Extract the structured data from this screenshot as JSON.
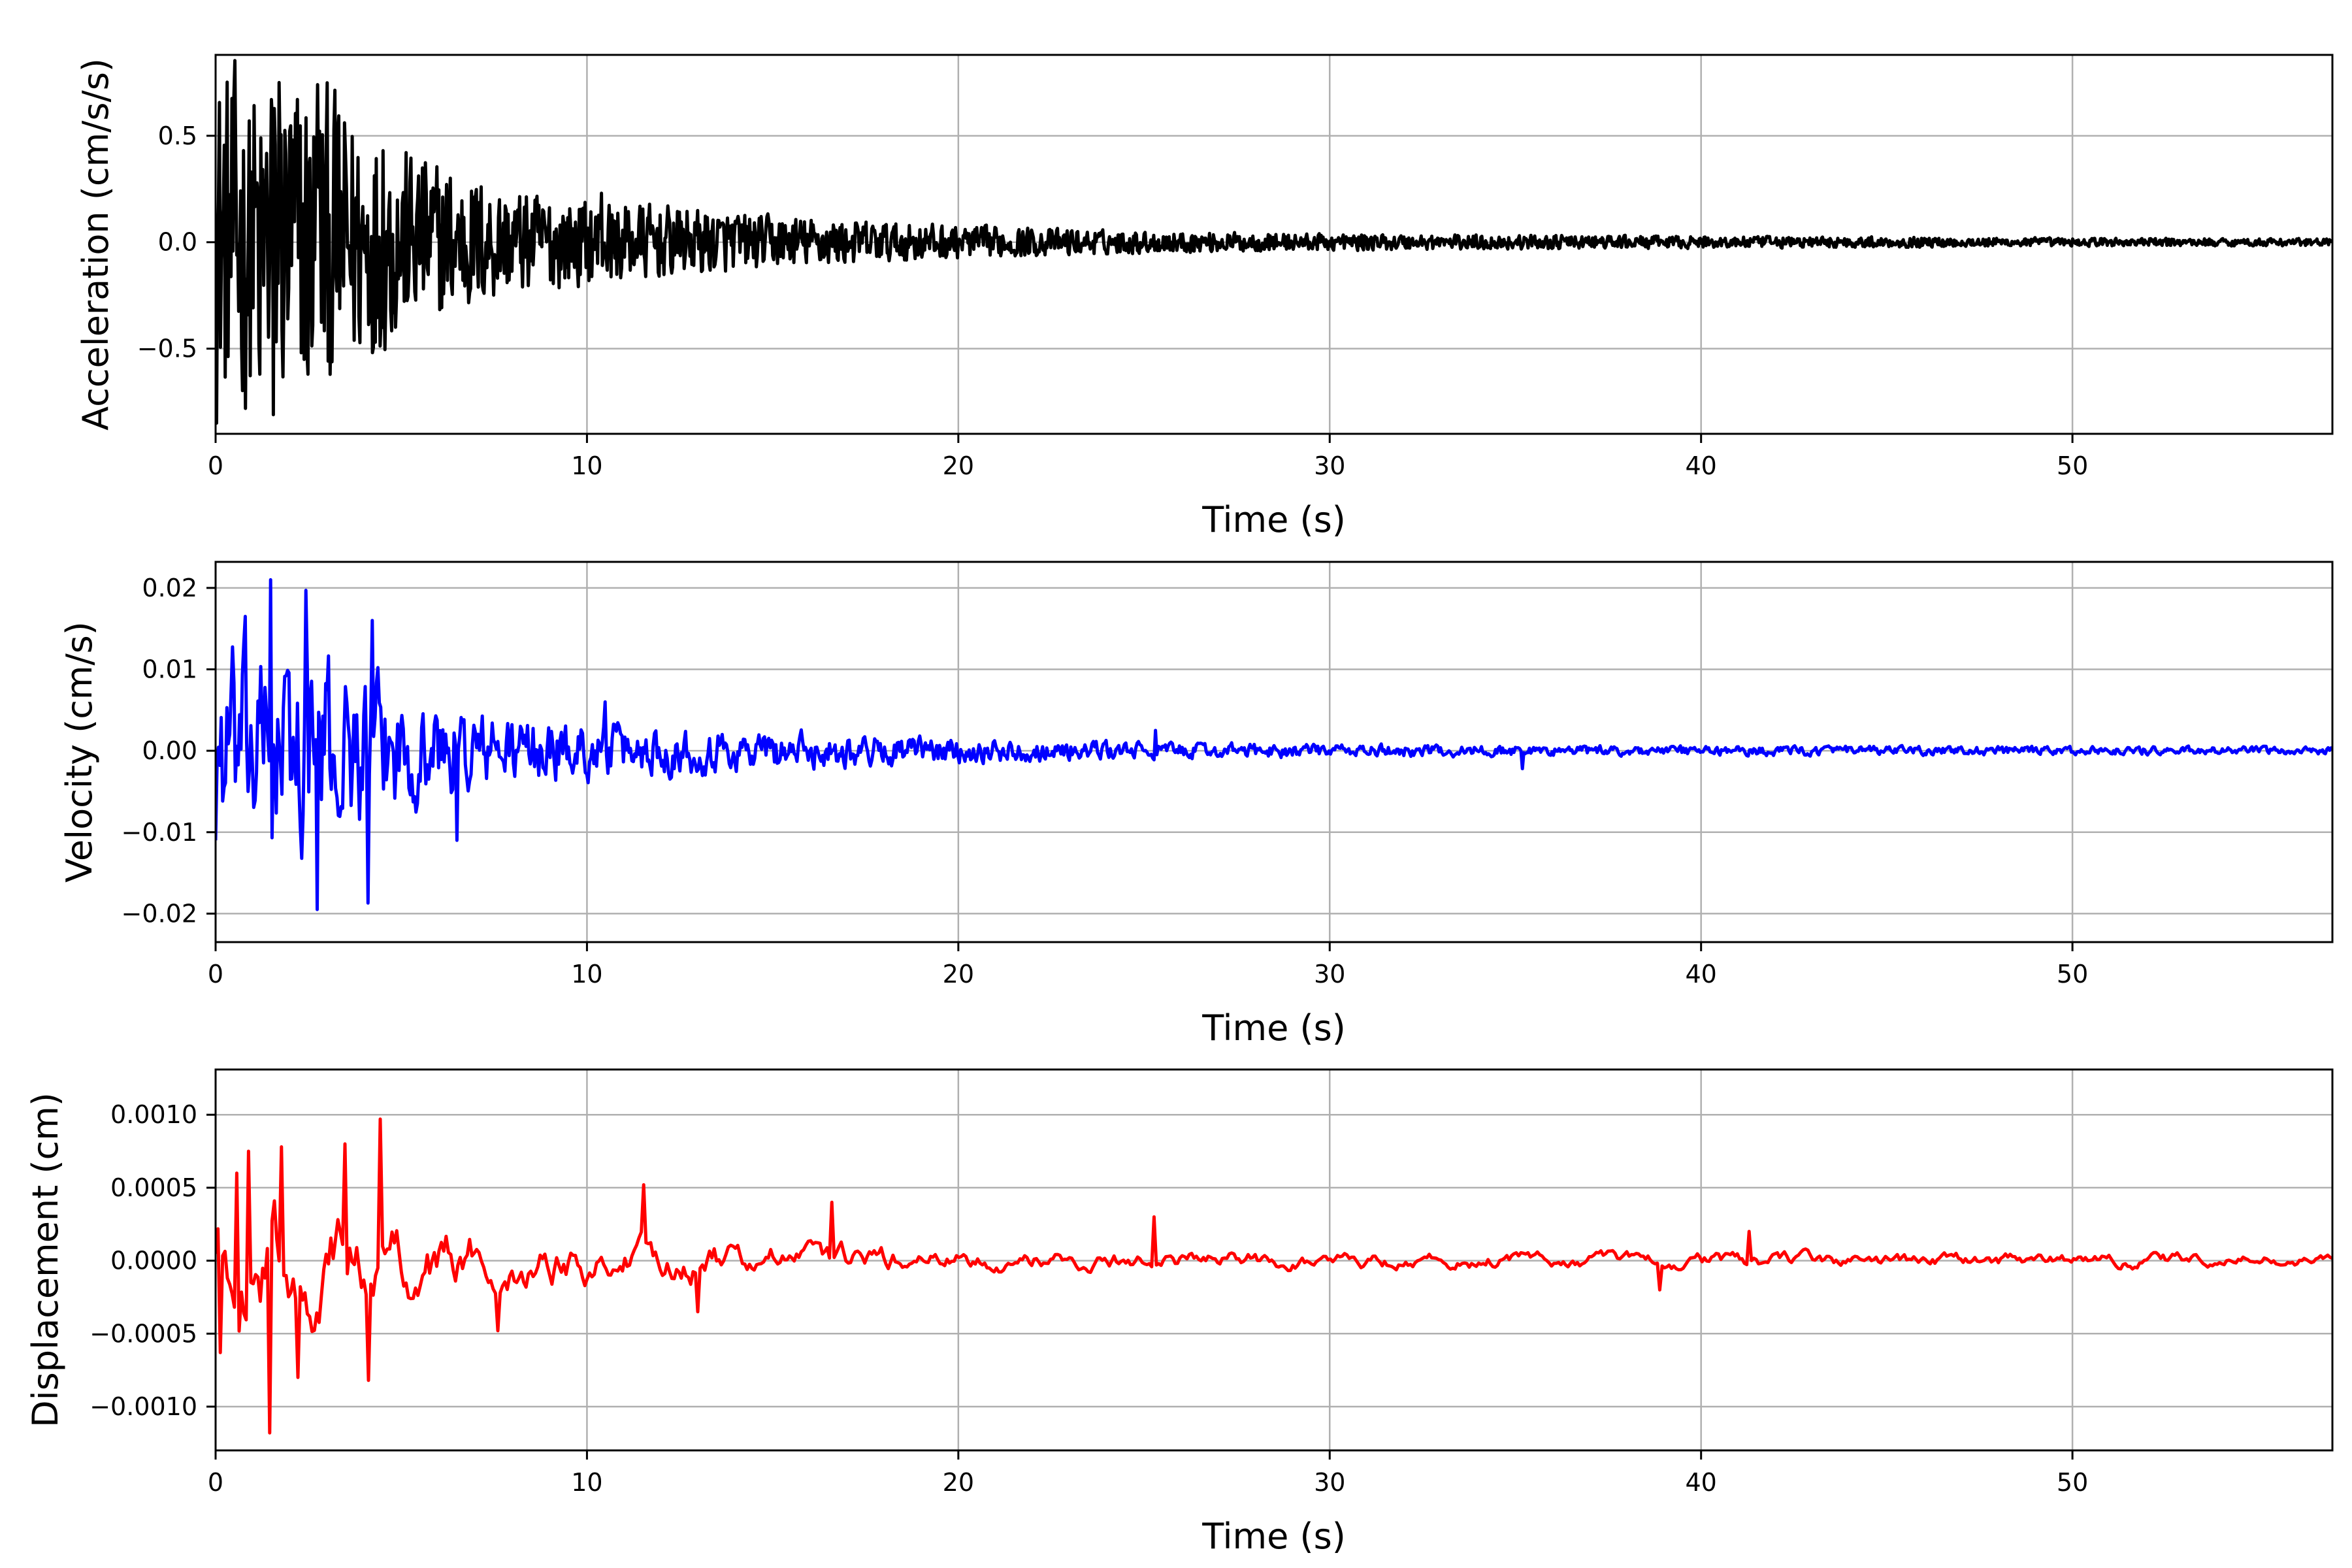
{
  "chart_data": [
    {
      "type": "line",
      "xlabel": "Time (s)",
      "ylabel": "Acceleration (cm/s/s)",
      "xlim": [
        0,
        57
      ],
      "ylim": [
        -0.9,
        0.88
      ],
      "xticks": [
        0,
        10,
        20,
        30,
        40,
        50
      ],
      "xtick_labels": [
        "0",
        "10",
        "20",
        "30",
        "40",
        "50"
      ],
      "yticks": [
        -0.5,
        0.0,
        0.5
      ],
      "ytick_labels": [
        "−0.5",
        "0.0",
        "0.5"
      ],
      "grid": true,
      "series": [
        {
          "color": "#000000",
          "envelope": [
            [
              0,
              0.72
            ],
            [
              2.5,
              0.7
            ],
            [
              5,
              0.4
            ],
            [
              8,
              0.22
            ],
            [
              10,
              0.18
            ],
            [
              15,
              0.11
            ],
            [
              20,
              0.07
            ],
            [
              25,
              0.045
            ],
            [
              30,
              0.035
            ],
            [
              40,
              0.025
            ],
            [
              50,
              0.018
            ],
            [
              57,
              0.015
            ]
          ],
          "peaks": [
            [
              0.0,
              -0.67
            ],
            [
              0.9,
              0.57
            ],
            [
              1.2,
              -0.62
            ],
            [
              1.5,
              0.67
            ],
            [
              1.55,
              -0.81
            ],
            [
              1.7,
              0.75
            ],
            [
              2.5,
              -0.62
            ],
            [
              2.75,
              0.74
            ],
            [
              4.3,
              -0.47
            ],
            [
              4.5,
              0.43
            ],
            [
              10.4,
              0.23
            ]
          ]
        }
      ]
    },
    {
      "type": "line",
      "xlabel": "Time (s)",
      "ylabel": "Velocity (cm/s)",
      "xlim": [
        0,
        57
      ],
      "ylim": [
        -0.0235,
        0.0232
      ],
      "xticks": [
        0,
        10,
        20,
        30,
        40,
        50
      ],
      "xtick_labels": [
        "0",
        "10",
        "20",
        "30",
        "40",
        "50"
      ],
      "yticks": [
        -0.02,
        -0.01,
        0.0,
        0.01,
        0.02
      ],
      "ytick_labels": [
        "−0.02",
        "−0.01",
        "0.00",
        "0.01",
        "0.02"
      ],
      "grid": true,
      "series": [
        {
          "color": "#0000ff",
          "envelope": [
            [
              0,
              0.014
            ],
            [
              2.5,
              0.014
            ],
            [
              5,
              0.008
            ],
            [
              8,
              0.005
            ],
            [
              10,
              0.004
            ],
            [
              15,
              0.0028
            ],
            [
              20,
              0.0018
            ],
            [
              25,
              0.0012
            ],
            [
              30,
              0.0009
            ],
            [
              40,
              0.0007
            ],
            [
              50,
              0.0006
            ],
            [
              57,
              0.0005
            ]
          ],
          "peaks": [
            [
              0.0,
              -0.011
            ],
            [
              0.8,
              0.0165
            ],
            [
              1.5,
              0.021
            ],
            [
              2.45,
              0.0197
            ],
            [
              2.75,
              -0.0195
            ],
            [
              4.1,
              -0.0187
            ],
            [
              4.2,
              0.016
            ],
            [
              6.5,
              -0.011
            ],
            [
              10.5,
              0.006
            ],
            [
              25.3,
              0.0025
            ],
            [
              35.2,
              -0.0022
            ]
          ]
        }
      ]
    },
    {
      "type": "line",
      "xlabel": "Time (s)",
      "ylabel": "Displacement (cm)",
      "xlim": [
        0,
        57
      ],
      "ylim": [
        -0.0013,
        0.00131
      ],
      "xticks": [
        0,
        10,
        20,
        30,
        40,
        50
      ],
      "xtick_labels": [
        "0",
        "10",
        "20",
        "30",
        "40",
        "50"
      ],
      "yticks": [
        -0.001,
        -0.0005,
        0.0,
        0.0005,
        0.001
      ],
      "ytick_labels": [
        "−0.0010",
        "−0.0005",
        "0.0000",
        "0.0005",
        "0.0010"
      ],
      "grid": true,
      "series": [
        {
          "color": "#ff0000",
          "envelope": [
            [
              0,
              0.0006
            ],
            [
              2.5,
              0.0006
            ],
            [
              5,
              0.00045
            ],
            [
              8,
              0.0003
            ],
            [
              10,
              0.00025
            ],
            [
              15,
              0.0002
            ],
            [
              20,
              0.00012
            ],
            [
              30,
              0.0001
            ],
            [
              57,
              8e-05
            ]
          ],
          "peaks": [
            [
              0.1,
              -0.00063
            ],
            [
              0.6,
              0.0006
            ],
            [
              0.9,
              0.00075
            ],
            [
              1.45,
              -0.00118
            ],
            [
              1.75,
              0.00078
            ],
            [
              2.2,
              -0.0008
            ],
            [
              3.5,
              0.0008
            ],
            [
              4.1,
              -0.00082
            ],
            [
              4.45,
              0.00097
            ],
            [
              7.6,
              -0.00048
            ],
            [
              11.5,
              0.00052
            ],
            [
              13.0,
              -0.00035
            ],
            [
              16.6,
              0.0004
            ],
            [
              25.3,
              0.0003
            ],
            [
              38.9,
              -0.0002
            ],
            [
              41.3,
              0.0002
            ]
          ]
        }
      ]
    }
  ]
}
